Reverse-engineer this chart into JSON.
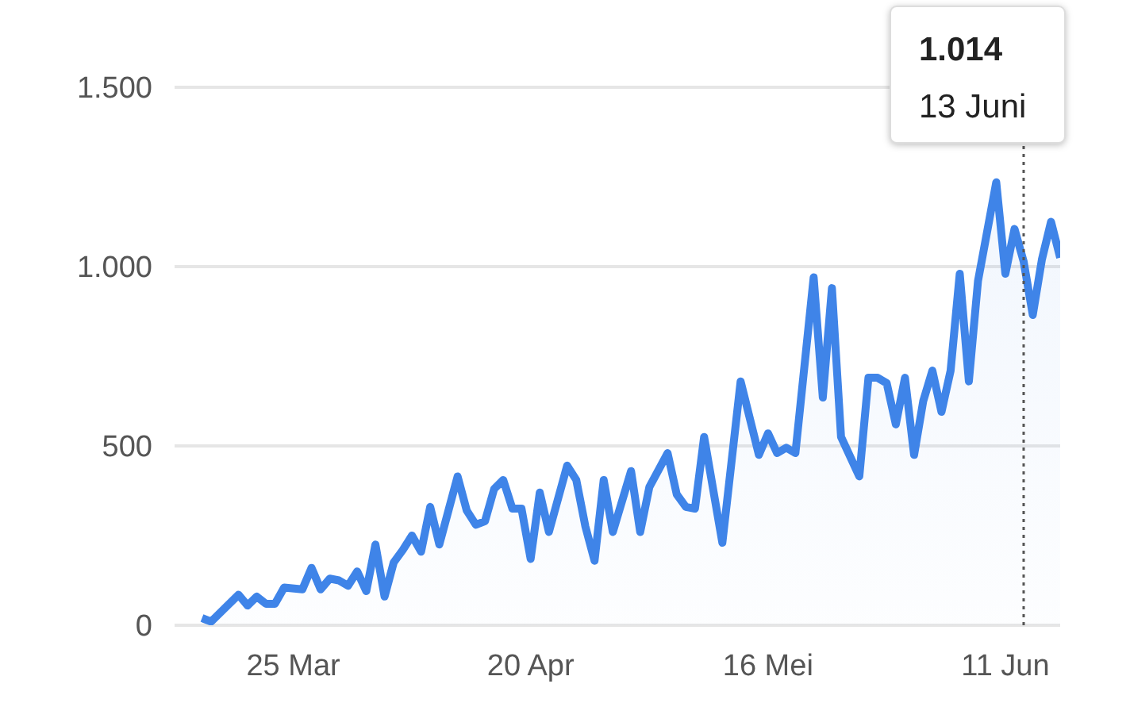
{
  "chart_data": {
    "type": "area",
    "x": [
      "--03-15",
      "--03-16",
      "--03-19",
      "--03-20",
      "--03-21",
      "--03-22",
      "--03-23",
      "--03-24",
      "--03-26",
      "--03-27",
      "--03-28",
      "--03-29",
      "--03-30",
      "--03-31",
      "--04-01",
      "--04-02",
      "--04-03",
      "--04-04",
      "--04-05",
      "--04-06",
      "--04-07",
      "--04-08",
      "--04-09",
      "--04-10",
      "--04-11",
      "--04-12",
      "--04-13",
      "--04-14",
      "--04-15",
      "--04-16",
      "--04-17",
      "--04-18",
      "--04-19",
      "--04-20",
      "--04-21",
      "--04-22",
      "--04-24",
      "--04-25",
      "--04-26",
      "--04-27",
      "--04-28",
      "--04-29",
      "--05-01",
      "--05-02",
      "--05-03",
      "--05-05",
      "--05-06",
      "--05-07",
      "--05-08",
      "--05-09",
      "--05-11",
      "--05-13",
      "--05-15",
      "--05-16",
      "--05-17",
      "--05-18",
      "--05-19",
      "--05-21",
      "--05-22",
      "--05-23",
      "--05-24",
      "--05-26",
      "--05-27",
      "--05-28",
      "--05-29",
      "--05-30",
      "--05-31",
      "--06-01",
      "--06-02",
      "--06-03",
      "--06-04",
      "--06-05",
      "--06-06",
      "--06-07",
      "--06-08",
      "--06-10",
      "--06-11",
      "--06-12",
      "--06-13",
      "--06-14",
      "--06-15",
      "--06-16",
      "--06-17"
    ],
    "series": [
      {
        "color": "#3f84e8",
        "values": [
          20,
          10,
          85,
          55,
          80,
          60,
          60,
          105,
          100,
          160,
          100,
          130,
          125,
          110,
          150,
          95,
          225,
          80,
          175,
          210,
          250,
          205,
          330,
          225,
          320,
          415,
          320,
          280,
          290,
          380,
          405,
          325,
          325,
          185,
          370,
          260,
          445,
          405,
          275,
          180,
          405,
          260,
          430,
          260,
          385,
          480,
          365,
          330,
          325,
          525,
          230,
          680,
          475,
          535,
          480,
          495,
          480,
          970,
          635,
          940,
          525,
          415,
          690,
          690,
          675,
          560,
          690,
          475,
          625,
          710,
          595,
          710,
          980,
          680,
          960,
          1235,
          980,
          1105,
          1014,
          865,
          1020,
          1125,
          1025
        ]
      }
    ],
    "xlim": [
      "--03-12",
      "--06-17"
    ],
    "xticks": [
      {
        "value": "--03-25",
        "label": "25 Mar"
      },
      {
        "value": "--04-20",
        "label": "20 Apr"
      },
      {
        "value": "--05-16",
        "label": "16 Mei"
      },
      {
        "value": "--06-11",
        "label": "11 Jun"
      }
    ],
    "ylim": [
      0,
      1500
    ],
    "yticks": [
      0,
      {
        "value": 500,
        "label": "500"
      },
      {
        "value": 1000,
        "label": "1.000"
      },
      {
        "value": 1500,
        "label": "1.500"
      }
    ],
    "grid": "y",
    "ref_lines": [
      {
        "axis": "x",
        "value": "--06-13",
        "color": "#555555",
        "line_style": "dotted"
      }
    ],
    "annotations": [
      "1.014",
      "13 Juni"
    ]
  }
}
